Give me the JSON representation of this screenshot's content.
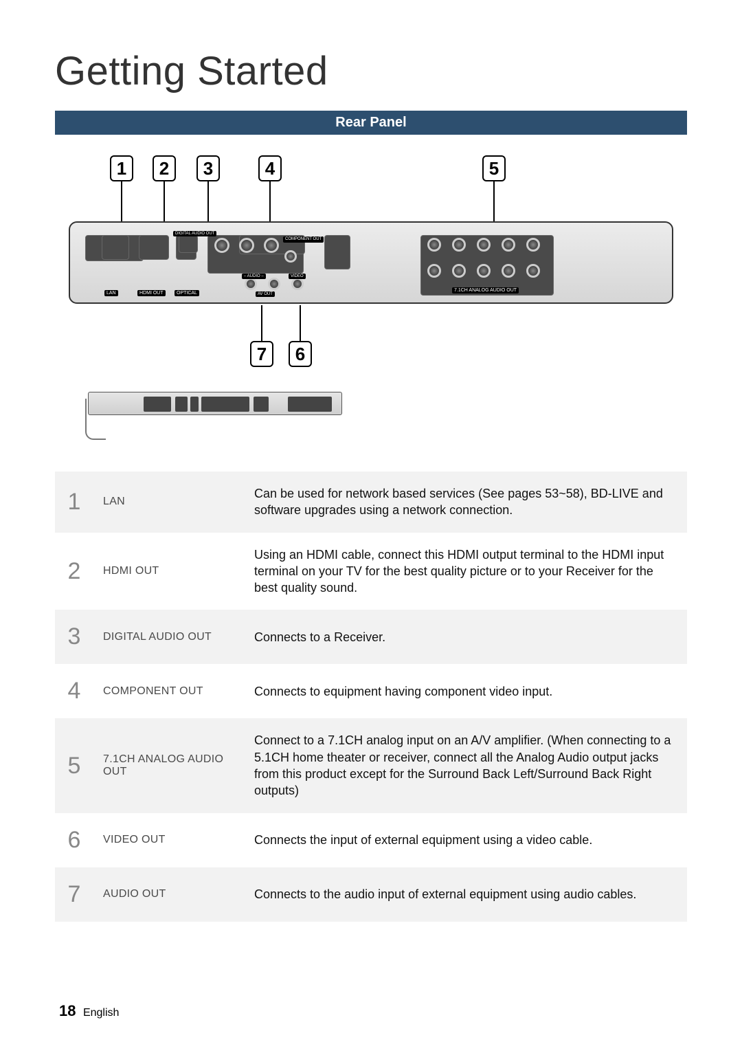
{
  "page": {
    "title": "Getting Started",
    "banner": "Rear Panel",
    "page_number": "18",
    "language": "English"
  },
  "colors": {
    "banner_bg": "#2d4f6f",
    "banner_fg": "#ffffff",
    "row_alt_bg": "#f2f2f2",
    "num_color": "#888888",
    "name_color": "#4a4a4a"
  },
  "callouts": [
    "1",
    "2",
    "3",
    "4",
    "5",
    "6",
    "7"
  ],
  "panel_labels": {
    "lan": "LAN",
    "hdmi": "HDMI OUT",
    "optical": "OPTICAL",
    "digital": "DIGITAL\nAUDIO OUT",
    "component": "COMPONENT\nOUT",
    "video": "VIDEO",
    "audio": "– AUDIO –",
    "avout": "AV OUT",
    "analog71": "7.1CH ANALOG AUDIO OUT"
  },
  "rows": [
    {
      "n": "1",
      "name": "LAN",
      "desc": "Can be used for network based services (See pages 53~58), BD-LIVE and software upgrades using a network connection."
    },
    {
      "n": "2",
      "name": "HDMI OUT",
      "desc": "Using an HDMI cable, connect this HDMI output terminal to the HDMI input terminal on your TV for the best quality picture or to your Receiver for the best quality sound."
    },
    {
      "n": "3",
      "name": "DIGITAL AUDIO OUT",
      "desc": "Connects to a Receiver."
    },
    {
      "n": "4",
      "name": "COMPONENT OUT",
      "desc": "Connects to equipment having component video input."
    },
    {
      "n": "5",
      "name": "7.1CH ANALOG AUDIO OUT",
      "desc": "Connect to a 7.1CH analog input on an A/V amplifier. (When connecting to a 5.1CH home theater or receiver, connect all the Analog Audio output jacks from this product except for the Surround Back Left/Surround Back Right outputs)"
    },
    {
      "n": "6",
      "name": "VIDEO OUT",
      "desc": "Connects the input of external equipment using a video cable."
    },
    {
      "n": "7",
      "name": "AUDIO OUT",
      "desc": "Connects to the audio input of external equipment using audio cables."
    }
  ]
}
